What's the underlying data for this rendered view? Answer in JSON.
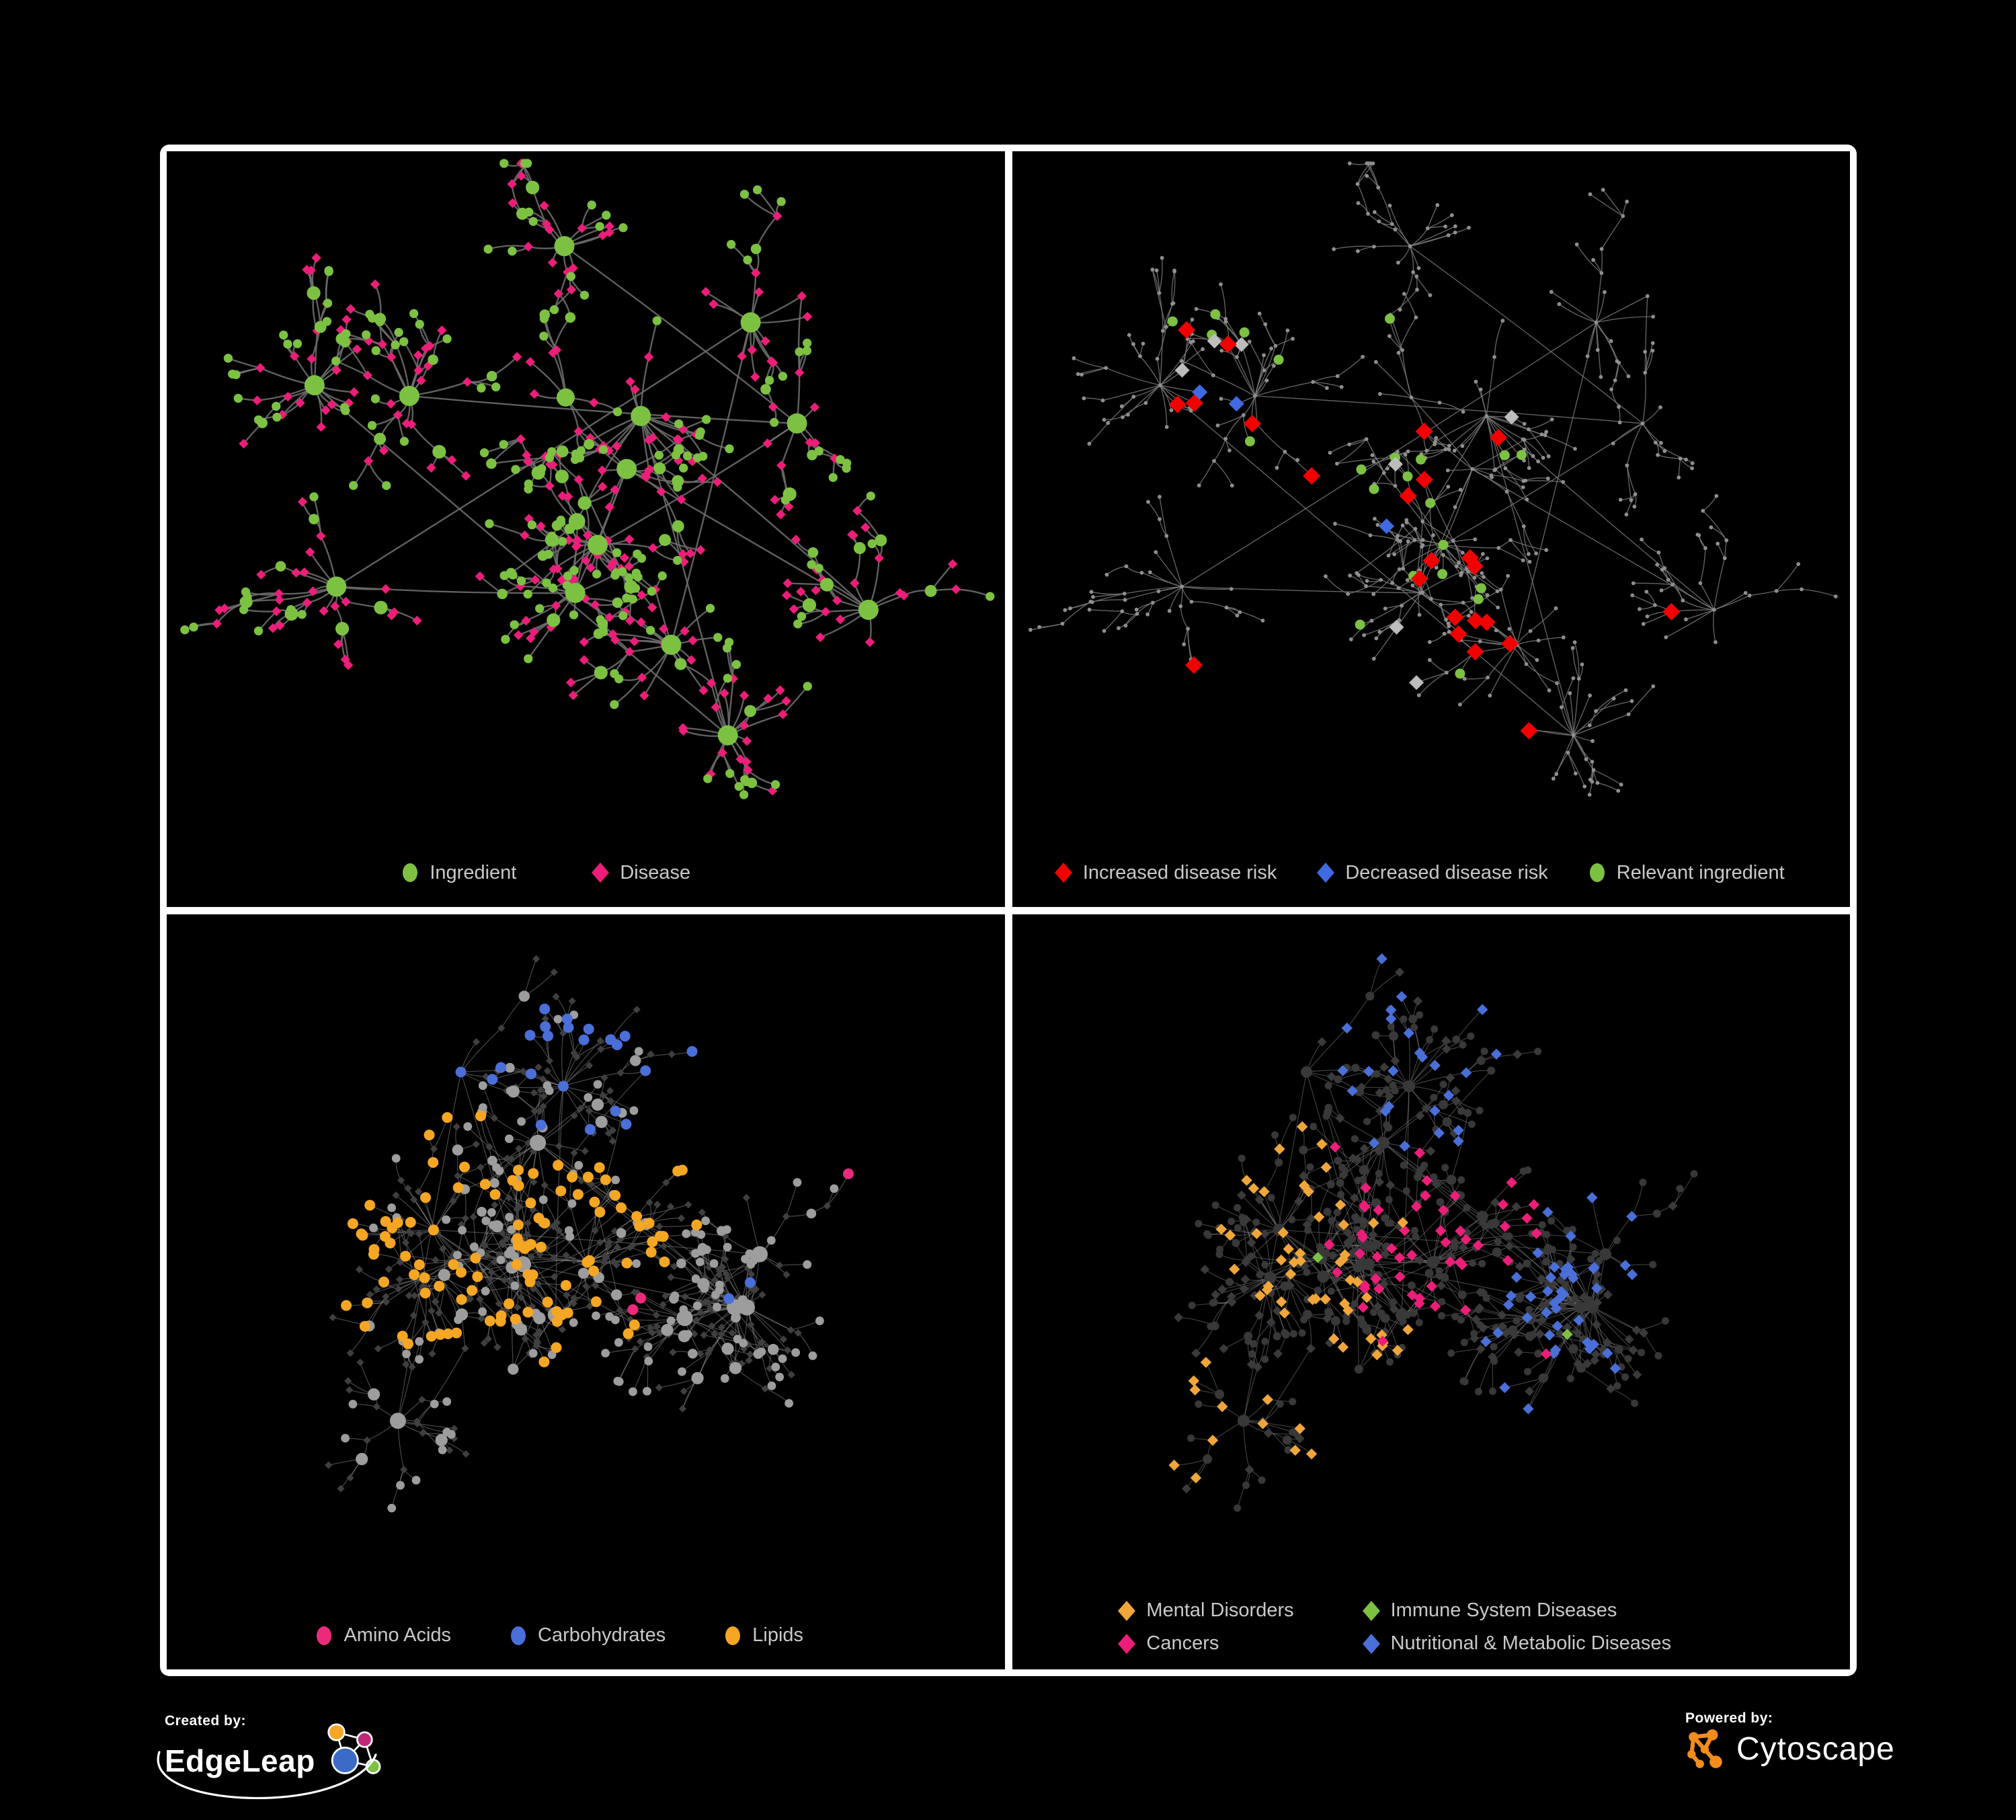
{
  "page": {
    "background": "#000000",
    "panel_border": "#ffffff",
    "legend_text_color": "#c9c9c9"
  },
  "panels": [
    {
      "name": "ingredient-disease-network",
      "legend": {
        "items": [
          {
            "shape": "ellipse",
            "color": "#7dc142",
            "label": "Ingredient"
          },
          {
            "shape": "diamond",
            "color": "#ec1e79",
            "label": "Disease"
          }
        ]
      }
    },
    {
      "name": "disease-risk-network",
      "legend": {
        "items": [
          {
            "shape": "diamond",
            "color": "#f20000",
            "label": "Increased disease risk"
          },
          {
            "shape": "diamond",
            "color": "#4169e1",
            "label": "Decreased disease risk"
          },
          {
            "shape": "ellipse",
            "color": "#7dc142",
            "label": "Relevant ingredient"
          }
        ]
      }
    },
    {
      "name": "macronutrient-network",
      "legend": {
        "items": [
          {
            "shape": "ellipse",
            "color": "#ec2a7c",
            "label": "Amino Acids"
          },
          {
            "shape": "ellipse",
            "color": "#4a6fd8",
            "label": "Carbohydrates"
          },
          {
            "shape": "ellipse",
            "color": "#f5a623",
            "label": "Lipids"
          }
        ]
      }
    },
    {
      "name": "disease-class-network",
      "legend": {
        "columns": 2,
        "items": [
          {
            "shape": "diamond",
            "color": "#f0a63a",
            "label": "Mental Disorders"
          },
          {
            "shape": "diamond",
            "color": "#7dc142",
            "label": "Immune System Diseases"
          },
          {
            "shape": "diamond",
            "color": "#ec1e79",
            "label": "Cancers"
          },
          {
            "shape": "diamond",
            "color": "#4a6fd8",
            "label": "Nutritional & Metabolic Diseases"
          }
        ]
      }
    }
  ],
  "network_colors": {
    "edge_bright": "#6d6d6d",
    "edge_light": "#7d7d7d",
    "edge_pale": "#8f8f8f",
    "green": "#7dc142",
    "pink": "#ec1e79",
    "red": "#f20000",
    "blue_risk": "#4169e1",
    "gray_dot": "#8f8f8f",
    "gray_diamond": "#bdbdbd",
    "gray_circle": "#9d9d9d",
    "dark_node": "#3a3a3a",
    "amino": "#ec2a7c",
    "carb": "#4a6fd8",
    "lipid": "#f5a623",
    "mental": "#f0a63a",
    "cancer": "#ec1e79",
    "nutritional": "#4a6fd8",
    "immune": "#7dc142"
  },
  "footer": {
    "created_by": "Created by:",
    "edgeleap": "EdgeLeap",
    "powered_by": "Powered by:",
    "cytoscape": "Cytoscape",
    "text_color": "#ffffff",
    "edgeleap_colors": {
      "orange": "#f5a623",
      "magenta": "#c02779",
      "blue": "#3b6bc7",
      "green": "#7dc142"
    },
    "cytoscape_color": "#f28c1d"
  }
}
